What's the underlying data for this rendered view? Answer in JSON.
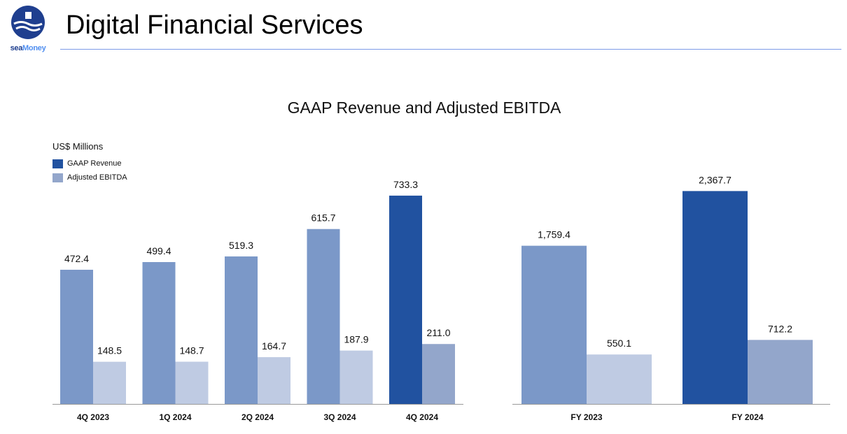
{
  "header": {
    "title": "Digital Financial Services",
    "logo_word_sea": "sea",
    "logo_word_money": "Money"
  },
  "colors": {
    "brand_navy": "#1f3f8f",
    "brand_light_blue": "#4f8ef0",
    "revenue_highlight": "#2152a0",
    "revenue_regular": "#7b98c8",
    "ebitda_regular": "#bfcbe3",
    "ebitda_highlight": "#93a6cb"
  },
  "chart_data": [
    {
      "type": "bar",
      "title": "GAAP Revenue and Adjusted EBITDA",
      "ylabel": "US$ Millions",
      "xlabel": "",
      "legend": [
        "GAAP Revenue",
        "Adjusted EBITDA"
      ],
      "legend_position": "top-left",
      "grid": false,
      "categories": [
        "4Q 2023",
        "1Q 2024",
        "2Q 2024",
        "3Q 2024",
        "4Q 2024"
      ],
      "series": [
        {
          "name": "GAAP Revenue",
          "values": [
            472.4,
            499.4,
            519.3,
            615.7,
            733.3
          ],
          "labels": [
            "472.4",
            "499.4",
            "519.3",
            "615.7",
            "733.3"
          ]
        },
        {
          "name": "Adjusted EBITDA",
          "values": [
            148.5,
            148.7,
            164.7,
            187.9,
            211.0
          ],
          "labels": [
            "148.5",
            "148.7",
            "164.7",
            "187.9",
            "211.0"
          ]
        }
      ],
      "highlight_category": "4Q 2024",
      "ylim": [
        0,
        780
      ]
    },
    {
      "type": "bar",
      "title": "",
      "categories": [
        "FY 2023",
        "FY 2024"
      ],
      "series": [
        {
          "name": "GAAP Revenue",
          "values": [
            1759.4,
            2367.7
          ],
          "labels": [
            "1,759.4",
            "2,367.7"
          ]
        },
        {
          "name": "Adjusted EBITDA",
          "values": [
            550.1,
            712.2
          ],
          "labels": [
            "550.1",
            "712.2"
          ]
        }
      ],
      "highlight_category": "FY 2024",
      "ylim": [
        0,
        2500
      ]
    }
  ]
}
